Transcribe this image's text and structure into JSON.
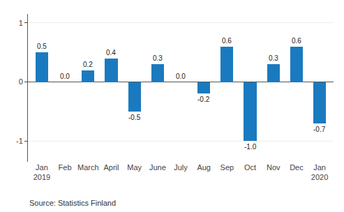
{
  "chart_data": {
    "type": "bar",
    "categories": [
      "Jan\n2019",
      "Feb",
      "March",
      "April",
      "May",
      "June",
      "July",
      "Aug",
      "Sep",
      "Oct",
      "Nov",
      "Dec",
      "Jan\n2020"
    ],
    "values": [
      0.5,
      0.0,
      0.2,
      0.4,
      -0.5,
      0.3,
      0.0,
      -0.2,
      0.6,
      -1.0,
      0.3,
      0.6,
      -0.7
    ],
    "value_labels": [
      "0.5",
      "0.0",
      "0.2",
      "0.4",
      "-0.5",
      "0.3",
      "0.0",
      "-0.2",
      "0.6",
      "-1.0",
      "0.3",
      "0.6",
      "-0.7"
    ],
    "color": "#1a7abf",
    "ylim": [
      -1.35,
      1.15
    ],
    "yticks": [
      -1,
      0,
      1
    ],
    "grid": true,
    "data_labels": true,
    "annotations": [
      "Source: Statistics Finland"
    ]
  }
}
